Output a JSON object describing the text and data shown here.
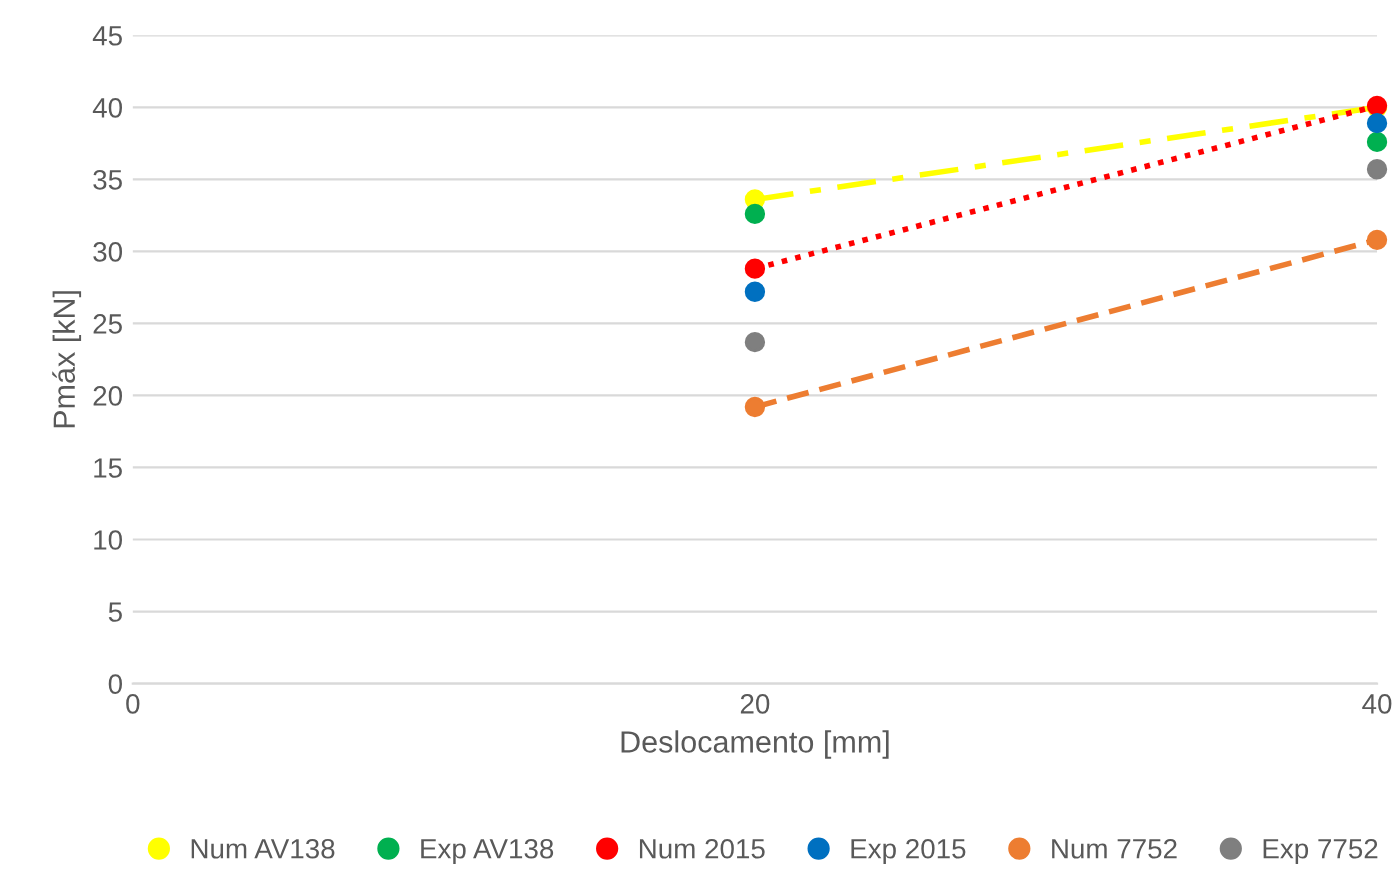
{
  "chart_data": {
    "type": "scatter",
    "xlabel": "Deslocamento [mm]",
    "ylabel": "Pmáx [kN]",
    "x": [
      20,
      40
    ],
    "xlim": [
      0,
      40
    ],
    "xticks": [
      0,
      20,
      40
    ],
    "ylim": [
      0,
      45
    ],
    "yticks": [
      0,
      5,
      10,
      15,
      20,
      25,
      30,
      35,
      40,
      45
    ],
    "grid": "y",
    "legend": "bottom",
    "marker": "circle",
    "series": [
      {
        "name": "Num AV138",
        "type": "line",
        "color": "#ffff00",
        "line_style": "dashdot",
        "values": [
          33.6,
          40
        ]
      },
      {
        "name": "Exp AV138",
        "color": "#00b050",
        "values": [
          32.6,
          37.6
        ]
      },
      {
        "name": "Num 2015",
        "type": "line",
        "color": "#ff0000",
        "line_style": "dotted",
        "values": [
          28.8,
          40.1
        ]
      },
      {
        "name": "Exp 2015",
        "color": "#0070c0",
        "values": [
          27.2,
          38.9
        ]
      },
      {
        "name": "Num 7752",
        "type": "line",
        "color": "#ed7d31",
        "line_style": "dashed",
        "values": [
          19.2,
          30.8
        ]
      },
      {
        "name": "Exp 7752",
        "color": "#7f7f7f",
        "values": [
          23.7,
          35.7
        ]
      }
    ]
  }
}
